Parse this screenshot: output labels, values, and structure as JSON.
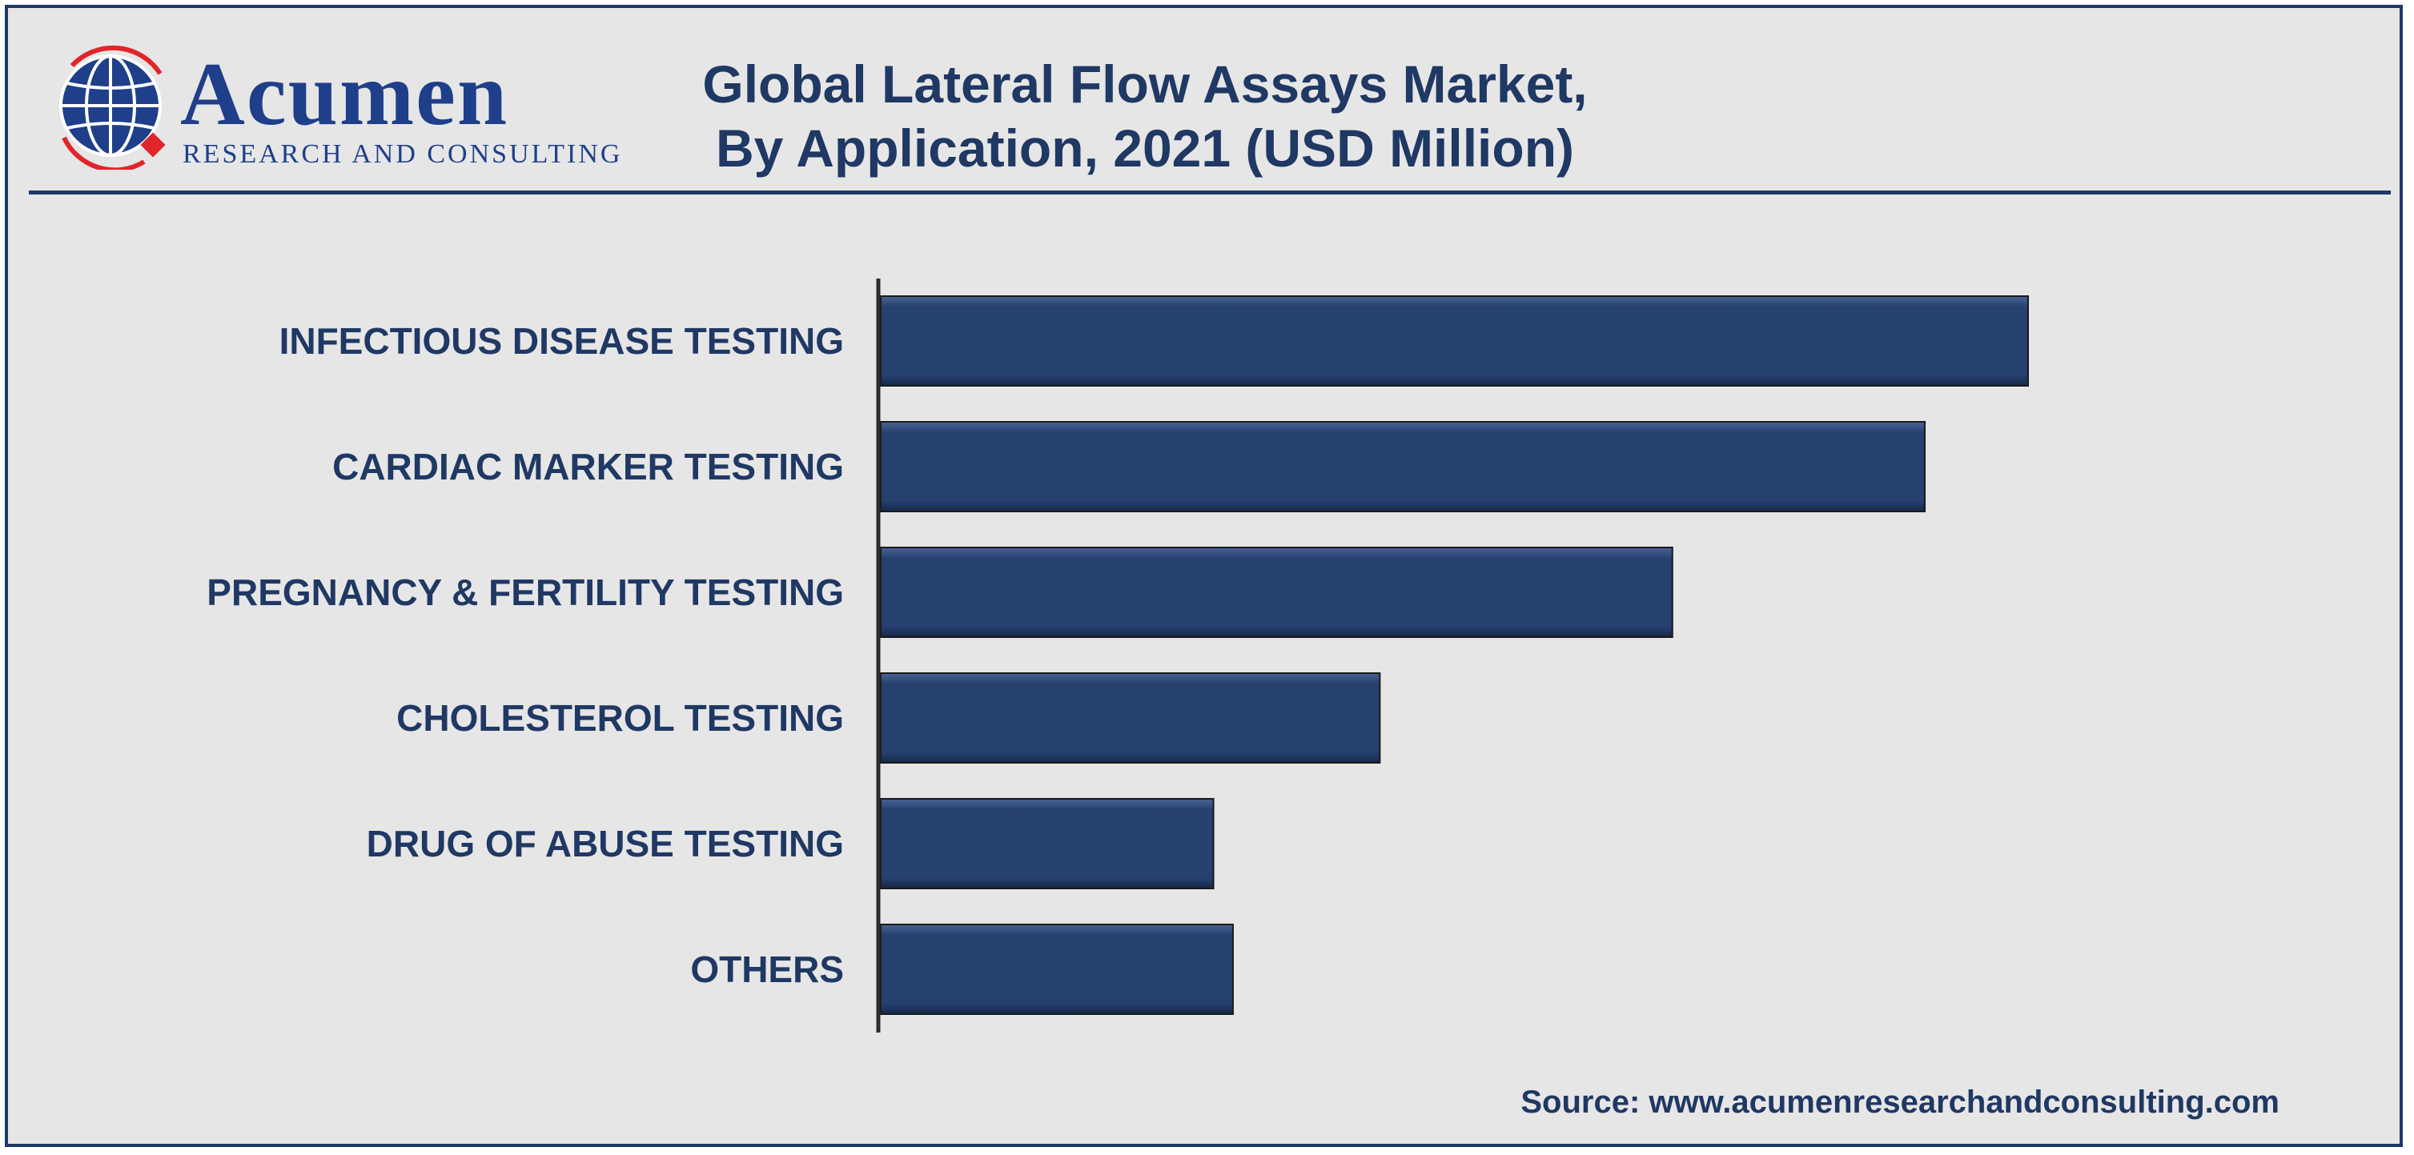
{
  "header": {
    "logo_word": "Acumen",
    "logo_subtitle": "RESEARCH AND CONSULTING",
    "title_line1": "Global Lateral Flow Assays Market,",
    "title_line2": "By Application, 2021 (USD Million)"
  },
  "footer": {
    "source": "Source: www.acumenresearchandconsulting.com"
  },
  "colors": {
    "bar": "#26406f",
    "text": "#1f3864",
    "background": "#e6e6e6",
    "logo_accent": "#e0252b"
  },
  "chart_data": {
    "type": "bar",
    "orientation": "horizontal",
    "title": "Global Lateral Flow Assays Market, By Application, 2021 (USD Million)",
    "categories": [
      "INFECTIOUS DISEASE TESTING",
      "CARDIAC MARKER TESTING",
      "PREGNANCY & FERTILITY TESTING",
      "CHOLESTEROL TESTING",
      "DRUG OF ABUSE TESTING",
      "OTHERS"
    ],
    "values": [
      100,
      91,
      69,
      43.5,
      29,
      30.7
    ],
    "xlim": [
      0,
      100
    ],
    "grid": false,
    "legend": "none"
  }
}
